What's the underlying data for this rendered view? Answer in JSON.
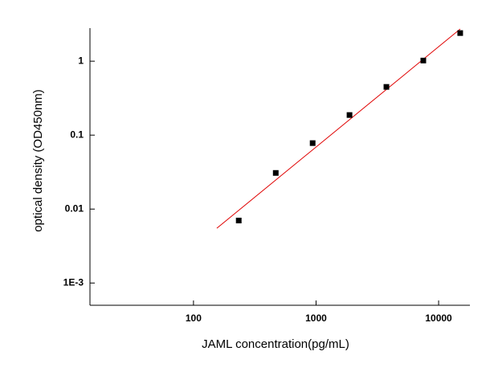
{
  "chart_data": {
    "type": "scatter",
    "x_label": "JAML concentration(pg/mL)",
    "y_label": "optical density (OD450nm)",
    "x": [
      234,
      469,
      938,
      1875,
      3750,
      7500,
      15000
    ],
    "values": [
      0.007,
      0.0308,
      0.078,
      0.187,
      0.449,
      1.02,
      2.4
    ],
    "color": "#000000",
    "fit": {
      "x": [
        155,
        15000
      ],
      "values": [
        0.0055,
        2.72
      ],
      "color": "#e00000"
    },
    "x_log": true,
    "y_log": true,
    "xlim": [
      14.3,
      18000
    ],
    "ylim": [
      0.0005,
      2.8
    ],
    "xticks": [
      100,
      1000,
      10000
    ],
    "yticks": [
      1,
      0.1,
      0.01,
      {
        "value": 0.001,
        "label": "1E-3"
      }
    ]
  }
}
